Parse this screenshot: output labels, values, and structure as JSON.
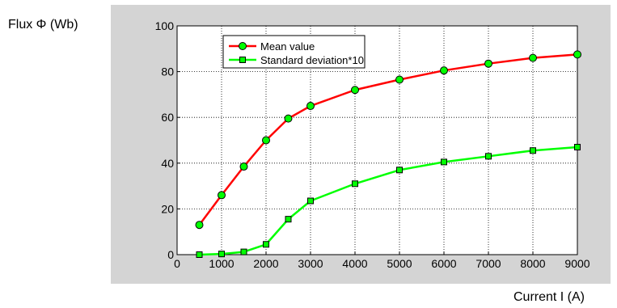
{
  "chart_data": {
    "type": "line",
    "title": "",
    "ylabel": "Flux Φ (Wb)",
    "xlabel": "Current I (A)",
    "xlim": [
      0,
      9000
    ],
    "ylim": [
      0,
      100
    ],
    "x_ticks": [
      0,
      1000,
      2000,
      3000,
      4000,
      5000,
      6000,
      7000,
      8000,
      9000
    ],
    "x_tick_labels": [
      "0",
      "1000",
      "2000",
      "3000",
      "4000",
      "5000",
      "6000",
      "7000",
      "8000",
      "9000"
    ],
    "y_ticks": [
      0,
      20,
      40,
      60,
      80,
      100
    ],
    "y_tick_labels": [
      "0",
      "20",
      "40",
      "60",
      "80",
      "100"
    ],
    "grid": true,
    "legend_position": "top-left",
    "series": [
      {
        "name": "Mean value",
        "color": "#ff0000",
        "marker": "circle",
        "marker_fill": "#00ff00",
        "x": [
          500,
          1000,
          1500,
          2000,
          2500,
          3000,
          4000,
          5000,
          6000,
          7000,
          8000,
          9000
        ],
        "y": [
          13,
          26,
          38.5,
          50,
          59.5,
          65,
          72,
          76.5,
          80.5,
          83.5,
          86,
          87.5
        ]
      },
      {
        "name": "Standard deviation*10",
        "color": "#00ff00",
        "marker": "square",
        "marker_fill": "#00ff00",
        "x": [
          500,
          1000,
          1500,
          2000,
          2500,
          3000,
          4000,
          5000,
          6000,
          7000,
          8000,
          9000
        ],
        "y": [
          0,
          0.3,
          1.2,
          4.5,
          15.5,
          23.5,
          31,
          37,
          40.5,
          43,
          45.5,
          47
        ]
      }
    ]
  }
}
